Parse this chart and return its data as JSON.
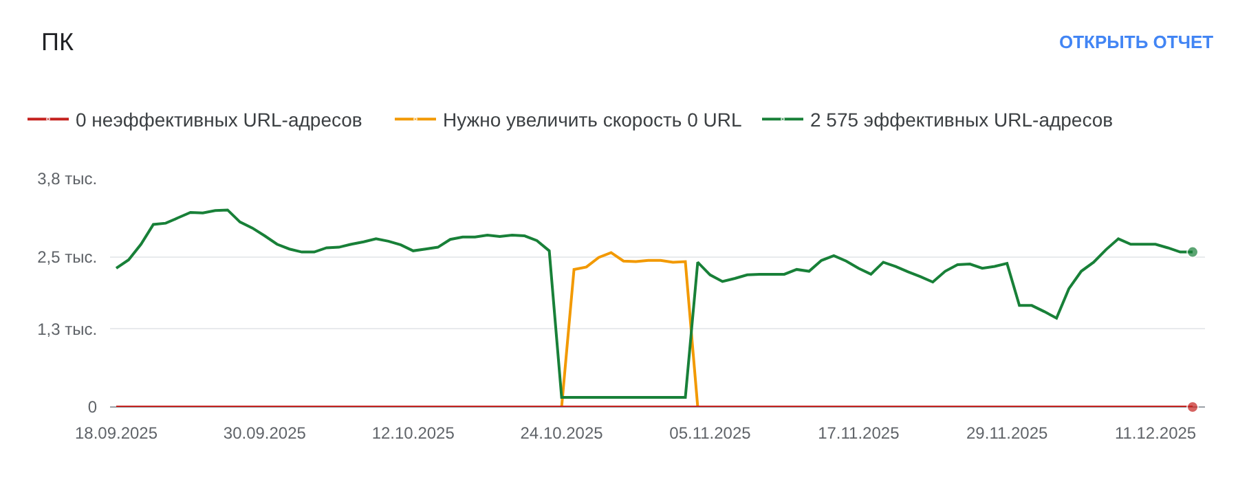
{
  "chart_data": {
    "type": "line",
    "title": "ПК",
    "annotations": [
      "ОТКРЫТЬ ОТЧЕТ"
    ],
    "x": [
      "2025-09-18",
      "2025-09-19",
      "2025-09-20",
      "2025-09-21",
      "2025-09-22",
      "2025-09-23",
      "2025-09-24",
      "2025-09-25",
      "2025-09-26",
      "2025-09-27",
      "2025-09-28",
      "2025-09-29",
      "2025-09-30",
      "2025-10-01",
      "2025-10-02",
      "2025-10-03",
      "2025-10-04",
      "2025-10-05",
      "2025-10-06",
      "2025-10-07",
      "2025-10-08",
      "2025-10-09",
      "2025-10-10",
      "2025-10-11",
      "2025-10-12",
      "2025-10-13",
      "2025-10-14",
      "2025-10-15",
      "2025-10-16",
      "2025-10-17",
      "2025-10-18",
      "2025-10-19",
      "2025-10-20",
      "2025-10-21",
      "2025-10-22",
      "2025-10-23",
      "2025-10-24",
      "2025-10-25",
      "2025-10-26",
      "2025-10-27",
      "2025-10-28",
      "2025-10-29",
      "2025-10-30",
      "2025-10-31",
      "2025-11-01",
      "2025-11-02",
      "2025-11-03",
      "2025-11-04",
      "2025-11-05",
      "2025-11-06",
      "2025-11-07",
      "2025-11-08",
      "2025-11-09",
      "2025-11-10",
      "2025-11-11",
      "2025-11-12",
      "2025-11-13",
      "2025-11-14",
      "2025-11-15",
      "2025-11-16",
      "2025-11-17",
      "2025-11-18",
      "2025-11-19",
      "2025-11-20",
      "2025-11-21",
      "2025-11-22",
      "2025-11-23",
      "2025-11-24",
      "2025-11-25",
      "2025-11-26",
      "2025-11-27",
      "2025-11-28",
      "2025-11-29",
      "2025-11-30",
      "2025-12-01",
      "2025-12-02",
      "2025-12-03",
      "2025-12-04",
      "2025-12-05",
      "2025-12-06",
      "2025-12-07",
      "2025-12-08",
      "2025-12-09",
      "2025-12-10",
      "2025-12-11",
      "2025-12-12",
      "2025-12-13",
      "2025-12-14"
    ],
    "series": [
      {
        "name": "0 неэффективных URL-адресов",
        "color": "#c5221f",
        "values": [
          0,
          0,
          0,
          0,
          0,
          0,
          0,
          0,
          0,
          0,
          0,
          0,
          0,
          0,
          0,
          0,
          0,
          0,
          0,
          0,
          0,
          0,
          0,
          0,
          0,
          0,
          0,
          0,
          0,
          0,
          0,
          0,
          0,
          0,
          0,
          0,
          0,
          0,
          0,
          0,
          0,
          0,
          0,
          0,
          0,
          0,
          0,
          0,
          0,
          0,
          0,
          0,
          0,
          0,
          0,
          0,
          0,
          0,
          0,
          0,
          0,
          0,
          0,
          0,
          0,
          0,
          0,
          0,
          0,
          0,
          0,
          0,
          0,
          0,
          0,
          0,
          0,
          0,
          0,
          0,
          0,
          0,
          0,
          0,
          0,
          0,
          0,
          0
        ]
      },
      {
        "name": "Нужно увеличить скорость 0 URL",
        "color": "#f29900",
        "values": [
          null,
          null,
          null,
          null,
          null,
          null,
          null,
          null,
          null,
          null,
          null,
          null,
          null,
          null,
          null,
          null,
          null,
          null,
          null,
          null,
          null,
          null,
          null,
          null,
          null,
          null,
          null,
          null,
          null,
          null,
          null,
          null,
          null,
          null,
          null,
          null,
          0,
          2.29,
          2.33,
          2.49,
          2.57,
          2.43,
          2.42,
          2.44,
          2.44,
          2.41,
          2.42,
          0,
          null,
          null,
          null,
          null,
          null,
          null,
          null,
          null,
          null,
          null,
          null,
          null,
          null,
          null,
          null,
          null,
          null,
          null,
          null,
          null,
          null,
          null,
          null,
          null,
          null,
          null,
          null,
          null,
          null,
          null,
          null,
          null,
          null,
          null,
          null,
          null,
          null,
          null,
          null,
          null
        ]
      },
      {
        "name": "2 575 эффективных URL-адресов",
        "color": "#188038",
        "values": [
          2.31,
          2.45,
          2.71,
          3.04,
          3.06,
          3.15,
          3.24,
          3.23,
          3.27,
          3.28,
          3.08,
          2.98,
          2.85,
          2.71,
          2.63,
          2.58,
          2.58,
          2.65,
          2.66,
          2.71,
          2.75,
          2.8,
          2.76,
          2.7,
          2.6,
          2.63,
          2.66,
          2.79,
          2.83,
          2.83,
          2.86,
          2.84,
          2.86,
          2.85,
          2.77,
          2.6,
          0.16,
          0.16,
          0.16,
          0.16,
          0.16,
          0.16,
          0.16,
          0.16,
          0.16,
          0.16,
          0.16,
          2.41,
          2.2,
          2.09,
          2.14,
          2.2,
          2.21,
          2.21,
          2.21,
          2.29,
          2.26,
          2.44,
          2.52,
          2.43,
          2.31,
          2.21,
          2.41,
          2.34,
          2.25,
          2.17,
          2.08,
          2.26,
          2.37,
          2.38,
          2.31,
          2.34,
          2.39,
          1.69,
          1.69,
          1.59,
          1.48,
          1.97,
          2.26,
          2.41,
          2.62,
          2.8,
          2.71,
          2.71,
          2.71,
          2.65,
          2.58,
          2.58
        ]
      }
    ],
    "xlim": [
      "2025-09-17T12:00",
      "2025-12-15"
    ],
    "xticks": [
      {
        "value": "2025-09-18",
        "label": "18.09.2025"
      },
      {
        "value": "2025-09-30",
        "label": "30.09.2025"
      },
      {
        "value": "2025-10-12",
        "label": "12.10.2025"
      },
      {
        "value": "2025-10-24",
        "label": "24.10.2025"
      },
      {
        "value": "2025-11-05",
        "label": "05.11.2025"
      },
      {
        "value": "2025-11-17",
        "label": "17.11.2025"
      },
      {
        "value": "2025-11-29",
        "label": "29.11.2025"
      },
      {
        "value": "2025-12-11",
        "label": "11.12.2025"
      }
    ],
    "ylim": [
      0,
      3.8
    ],
    "yticks": [
      0,
      {
        "value": 1.3,
        "label": "1,3 тыс."
      },
      {
        "value": 2.5,
        "label": "2,5 тыс."
      },
      {
        "value": 3.8,
        "label": "3,8 тыс."
      }
    ],
    "grid": "y",
    "legend": "top",
    "line_style": "solid"
  }
}
